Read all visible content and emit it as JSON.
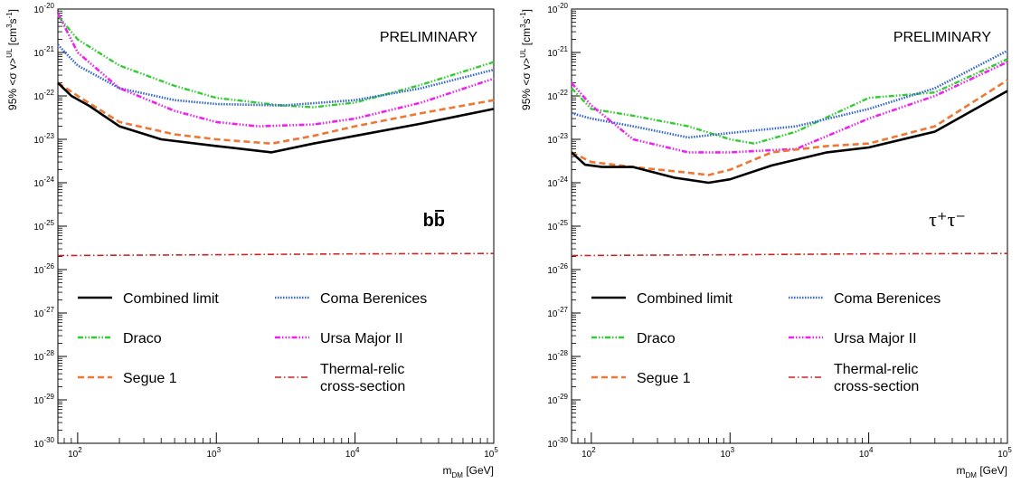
{
  "chart_data": [
    {
      "type": "line",
      "log_x": true,
      "log_y": true,
      "xlim": [
        72,
        100000
      ],
      "ylim": [
        1e-30,
        1e-20
      ],
      "xlabel": "m_DM [GeV]",
      "ylabel": "95% <σ v>^UL [cm^3 s^-1]",
      "preliminary": "PRELIMINARY",
      "channel": "bb̄",
      "legend_columns": 2,
      "series": [
        {
          "name": "Combined limit",
          "color": "#000000",
          "style": "solid",
          "x": [
            72,
            90,
            120,
            200,
            400,
            1000,
            2500,
            5000,
            10000,
            30000,
            100000
          ],
          "y": [
            2e-22,
            1e-22,
            6e-23,
            2e-23,
            1e-23,
            7e-24,
            5e-24,
            8e-24,
            1.2e-23,
            2.3e-23,
            5e-23
          ]
        },
        {
          "name": "Draco",
          "color": "#33cc33",
          "style": "dash-dot-dot",
          "x": [
            72,
            100,
            200,
            500,
            1000,
            3000,
            5000,
            10000,
            30000,
            100000
          ],
          "y": [
            7e-21,
            2e-21,
            5e-22,
            1.7e-22,
            9e-23,
            6e-23,
            5.5e-23,
            7e-23,
            1.8e-22,
            6e-22
          ]
        },
        {
          "name": "Segue 1",
          "color": "#ee7733",
          "style": "dashed",
          "x": [
            72,
            100,
            200,
            500,
            1000,
            2500,
            5000,
            10000,
            30000,
            100000
          ],
          "y": [
            2e-22,
            1e-22,
            2.5e-23,
            1.3e-23,
            1e-23,
            8e-24,
            1.2e-23,
            2e-23,
            4e-23,
            8e-23
          ]
        },
        {
          "name": "Coma Berenices",
          "color": "#3366cc",
          "style": "dotted",
          "x": [
            72,
            100,
            200,
            500,
            1000,
            3000,
            10000,
            30000,
            100000
          ],
          "y": [
            1.5e-21,
            5e-22,
            1.5e-22,
            8e-23,
            6.5e-23,
            6e-23,
            8e-23,
            1.5e-22,
            4e-22
          ]
        },
        {
          "name": "Ursa Major II",
          "color": "#ee22ee",
          "style": "dash-dot-dot-dot",
          "x": [
            72,
            100,
            200,
            500,
            1000,
            2000,
            5000,
            10000,
            30000,
            100000
          ],
          "y": [
            8e-21,
            1e-21,
            1.5e-22,
            4.5e-23,
            2.5e-23,
            2e-23,
            2.2e-23,
            3e-23,
            7e-23,
            2.5e-22
          ]
        },
        {
          "name": "Thermal-relic cross-section",
          "color": "#cc2222",
          "style": "dash-dot",
          "x": [
            72,
            1000,
            10000,
            100000
          ],
          "y": [
            2.1e-26,
            2.2e-26,
            2.3e-26,
            2.35e-26
          ]
        }
      ]
    },
    {
      "type": "line",
      "log_x": true,
      "log_y": true,
      "xlim": [
        72,
        100000
      ],
      "ylim": [
        1e-30,
        1e-20
      ],
      "xlabel": "m_DM [GeV]",
      "ylabel": "95% <σ v>^UL [cm^3 s^-1]",
      "preliminary": "PRELIMINARY",
      "channel": "τ⁺τ⁻",
      "legend_columns": 2,
      "series": [
        {
          "name": "Combined limit",
          "color": "#000000",
          "style": "solid",
          "x": [
            72,
            90,
            120,
            200,
            400,
            700,
            1000,
            2000,
            5000,
            10000,
            30000,
            100000
          ],
          "y": [
            5e-24,
            2.6e-24,
            2.3e-24,
            2.3e-24,
            1.3e-24,
            1e-24,
            1.2e-24,
            2.5e-24,
            5e-24,
            6.5e-24,
            1.5e-23,
            1.3e-22
          ]
        },
        {
          "name": "Draco",
          "color": "#33cc33",
          "style": "dash-dot-dot",
          "x": [
            72,
            100,
            200,
            500,
            1000,
            1500,
            3000,
            10000,
            30000,
            100000
          ],
          "y": [
            1.5e-22,
            5e-23,
            3.5e-23,
            2e-23,
            1e-23,
            8e-24,
            1.5e-23,
            9e-23,
            1.2e-22,
            7e-22
          ]
        },
        {
          "name": "Segue 1",
          "color": "#ee7733",
          "style": "dashed",
          "x": [
            72,
            100,
            200,
            500,
            700,
            1000,
            2000,
            5000,
            10000,
            30000,
            100000
          ],
          "y": [
            5e-24,
            3e-24,
            2.3e-24,
            1.7e-24,
            1.5e-24,
            2e-24,
            5e-24,
            7e-24,
            8e-24,
            2e-23,
            2.3e-22
          ]
        },
        {
          "name": "Coma Berenices",
          "color": "#3366cc",
          "style": "dotted",
          "x": [
            72,
            100,
            200,
            500,
            1000,
            3000,
            10000,
            30000,
            100000
          ],
          "y": [
            4e-23,
            3e-23,
            2e-23,
            1.1e-23,
            1.4e-23,
            2e-23,
            5e-23,
            1.5e-22,
            1.1e-21
          ]
        },
        {
          "name": "Ursa Major II",
          "color": "#ee22ee",
          "style": "dash-dot-dot-dot",
          "x": [
            72,
            100,
            200,
            500,
            1000,
            3000,
            10000,
            30000,
            100000
          ],
          "y": [
            2e-22,
            6e-23,
            1e-23,
            5e-24,
            5e-24,
            6e-24,
            3e-23,
            1e-22,
            6e-22
          ]
        },
        {
          "name": "Thermal-relic cross-section",
          "color": "#cc2222",
          "style": "dash-dot",
          "x": [
            72,
            1000,
            10000,
            100000
          ],
          "y": [
            2.1e-26,
            2.2e-26,
            2.3e-26,
            2.35e-26
          ]
        }
      ]
    }
  ]
}
